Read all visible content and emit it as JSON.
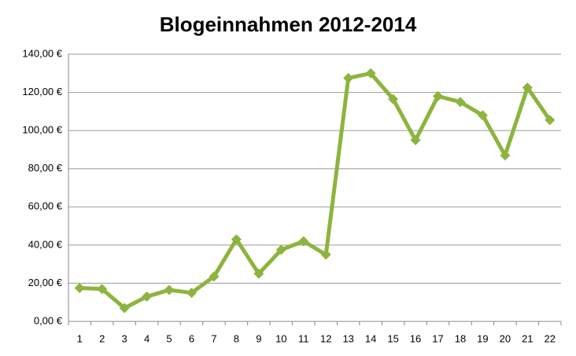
{
  "chart_data": {
    "type": "line",
    "title": "Blogeinnahmen 2012-2014",
    "categories": [
      "1",
      "2",
      "3",
      "4",
      "5",
      "6",
      "7",
      "8",
      "9",
      "10",
      "11",
      "12",
      "13",
      "14",
      "15",
      "16",
      "17",
      "18",
      "19",
      "20",
      "21",
      "22"
    ],
    "series": [
      {
        "color": "#8db43e",
        "values": [
          17.5,
          17,
          7,
          13,
          16.5,
          15,
          23.5,
          43,
          25,
          37.5,
          42,
          35,
          127.5,
          130,
          116.5,
          95,
          118,
          115,
          108,
          87,
          122.5,
          105.5
        ]
      }
    ],
    "ylim": [
      0,
      140
    ],
    "yticks": [
      {
        "value": 0,
        "label": "0,00 €"
      },
      {
        "value": 20,
        "label": "20,00 €"
      },
      {
        "value": 40,
        "label": "40,00 €"
      },
      {
        "value": 60,
        "label": "60,00 €"
      },
      {
        "value": 80,
        "label": "80,00 €"
      },
      {
        "value": 100,
        "label": "100,00 €"
      },
      {
        "value": 120,
        "label": "120,00 €"
      },
      {
        "value": 140,
        "label": "140,00 €"
      }
    ],
    "grid": true
  }
}
